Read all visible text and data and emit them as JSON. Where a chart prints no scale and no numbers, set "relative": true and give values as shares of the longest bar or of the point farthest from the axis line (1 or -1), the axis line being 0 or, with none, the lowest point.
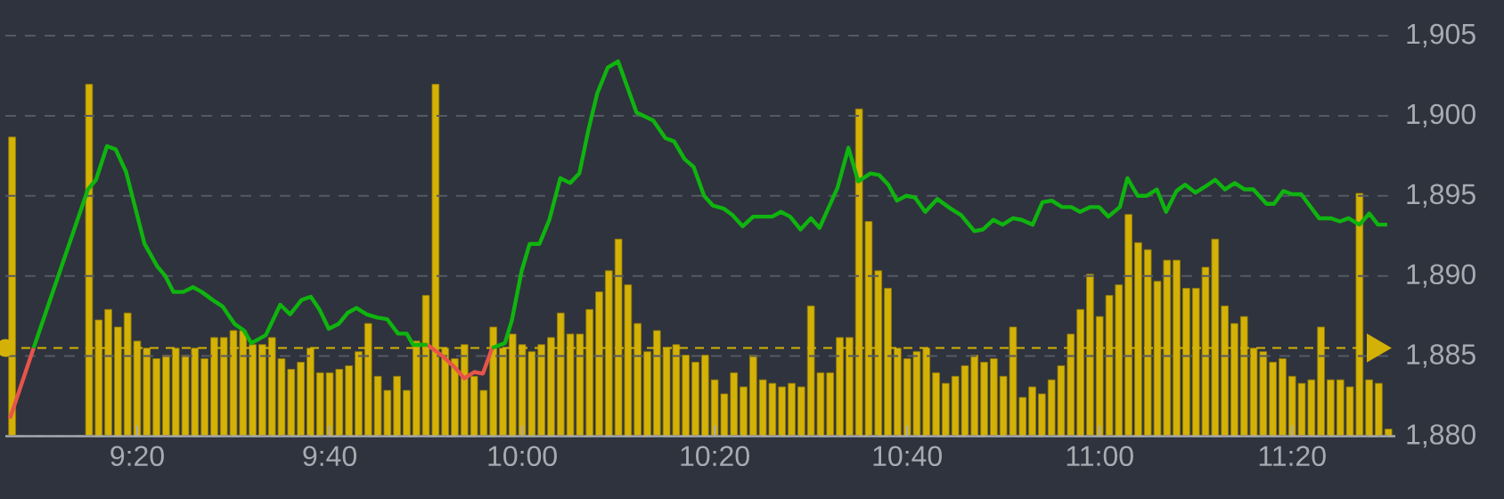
{
  "chart_data": [
    {
      "type": "bar",
      "relative": true,
      "color": "#d4b106",
      "xlim": [
        9.105,
        11.512
      ],
      "x": [
        9.1167,
        9.25,
        9.2667,
        9.2833,
        9.3,
        9.3167,
        9.3333,
        9.35,
        9.3667,
        9.3833,
        9.4,
        9.4167,
        9.4333,
        9.45,
        9.4667,
        9.4833,
        9.5,
        9.5167,
        9.5333,
        9.55,
        9.5667,
        9.5833,
        9.6,
        9.6167,
        9.6333,
        9.65,
        9.6667,
        9.6833,
        9.7,
        9.7167,
        9.7333,
        9.75,
        9.7667,
        9.7833,
        9.8,
        9.8167,
        9.8333,
        9.85,
        9.8667,
        9.8833,
        9.9,
        9.9167,
        9.9333,
        9.95,
        9.9667,
        9.9833,
        10,
        10.0167,
        10.0333,
        10.05,
        10.0667,
        10.0833,
        10.1,
        10.1167,
        10.1333,
        10.15,
        10.1667,
        10.1833,
        10.2,
        10.2167,
        10.2333,
        10.25,
        10.2667,
        10.2833,
        10.3,
        10.3167,
        10.3333,
        10.35,
        10.3667,
        10.3833,
        10.4,
        10.4167,
        10.4333,
        10.45,
        10.4667,
        10.4833,
        10.5,
        10.5167,
        10.5333,
        10.55,
        10.5667,
        10.5833,
        10.6,
        10.6167,
        10.6333,
        10.65,
        10.6667,
        10.6833,
        10.7,
        10.7167,
        10.7333,
        10.75,
        10.7667,
        10.7833,
        10.8,
        10.8167,
        10.8333,
        10.85,
        10.8667,
        10.8833,
        10.9,
        10.9167,
        10.9333,
        10.95,
        10.9667,
        10.9833,
        11,
        11.0167,
        11.0333,
        11.05,
        11.0667,
        11.0833,
        11.1,
        11.1167,
        11.1333,
        11.15,
        11.1667,
        11.1833,
        11.2,
        11.2167,
        11.2333,
        11.25,
        11.2667,
        11.2833,
        11.3,
        11.3167,
        11.3333,
        11.35,
        11.3667,
        11.3833,
        11.4,
        11.4167,
        11.4333,
        11.45,
        11.4667,
        11.4833,
        11.5
      ],
      "values": [
        0.85,
        1.0,
        0.33,
        0.36,
        0.31,
        0.35,
        0.27,
        0.25,
        0.22,
        0.23,
        0.25,
        0.23,
        0.25,
        0.22,
        0.28,
        0.28,
        0.3,
        0.3,
        0.26,
        0.26,
        0.28,
        0.22,
        0.19,
        0.21,
        0.25,
        0.18,
        0.18,
        0.19,
        0.2,
        0.24,
        0.32,
        0.17,
        0.13,
        0.17,
        0.13,
        0.27,
        0.4,
        1.0,
        0.25,
        0.22,
        0.26,
        0.17,
        0.13,
        0.31,
        0.25,
        0.29,
        0.26,
        0.24,
        0.26,
        0.28,
        0.35,
        0.29,
        0.29,
        0.36,
        0.41,
        0.47,
        0.56,
        0.43,
        0.32,
        0.24,
        0.3,
        0.25,
        0.26,
        0.23,
        0.21,
        0.23,
        0.16,
        0.12,
        0.18,
        0.14,
        0.23,
        0.16,
        0.15,
        0.14,
        0.15,
        0.14,
        0.37,
        0.18,
        0.18,
        0.28,
        0.28,
        0.93,
        0.61,
        0.47,
        0.42,
        0.25,
        0.22,
        0.24,
        0.25,
        0.18,
        0.15,
        0.17,
        0.2,
        0.23,
        0.21,
        0.22,
        0.17,
        0.31,
        0.11,
        0.14,
        0.12,
        0.16,
        0.2,
        0.29,
        0.36,
        0.46,
        0.34,
        0.4,
        0.43,
        0.63,
        0.55,
        0.53,
        0.44,
        0.5,
        0.5,
        0.42,
        0.42,
        0.48,
        0.56,
        0.37,
        0.32,
        0.34,
        0.25,
        0.24,
        0.21,
        0.22,
        0.17,
        0.15,
        0.16,
        0.31,
        0.16,
        0.16,
        0.14,
        0.69,
        0.16,
        0.15,
        0.02
      ]
    },
    {
      "type": "line",
      "xlim": [
        9.105,
        11.512
      ],
      "xticks": [
        {
          "value": 9.3333,
          "label": "9:20"
        },
        {
          "value": 9.6667,
          "label": "9:40"
        },
        {
          "value": 10,
          "label": "10:00"
        },
        {
          "value": 10.3333,
          "label": "10:20"
        },
        {
          "value": 10.6667,
          "label": "10:40"
        },
        {
          "value": 11,
          "label": "11:00"
        },
        {
          "value": 11.3333,
          "label": "11:20"
        }
      ],
      "ylim": [
        1880,
        1905
      ],
      "yticks": [
        {
          "value": 1880,
          "label": "1,880"
        },
        {
          "value": 1885,
          "label": "1,885"
        },
        {
          "value": 1890,
          "label": "1,890"
        },
        {
          "value": 1895,
          "label": "1,895"
        },
        {
          "value": 1900,
          "label": "1,900"
        },
        {
          "value": 1905,
          "label": "1,905"
        }
      ],
      "grid": "y",
      "marker": "none",
      "line_style": "solid",
      "ref_lines": [
        {
          "axis": "y",
          "value": 1885.5,
          "color": "#d4b106",
          "line_style": "dashed"
        }
      ],
      "series": [
        {
          "color": "#e8544a",
          "x": [
            9.113,
            9.154,
            9.5,
            9.836,
            9.862,
            9.883,
            9.9,
            9.917,
            9.932,
            9.948
          ],
          "values": [
            1881.1,
            1885.5,
            null,
            1885.7,
            1885.0,
            1884.3,
            1883.6,
            1884.0,
            1883.9,
            1885.5
          ]
        },
        {
          "color": "#0fb40f",
          "x": [
            9.154,
            9.248,
            9.262,
            9.281,
            9.296,
            9.314,
            9.346,
            9.368,
            9.382,
            9.396,
            9.413,
            9.43,
            9.445,
            9.464,
            9.481,
            9.502,
            9.518,
            9.531,
            9.556,
            9.581,
            9.598,
            9.618,
            9.634,
            9.649,
            9.665,
            9.682,
            9.698,
            9.713,
            9.731,
            9.749,
            9.766,
            9.785,
            9.8,
            9.811,
            9.836,
            9.89,
            9.948,
            9.97,
            9.982,
            9.999,
            10.013,
            10.03,
            10.047,
            10.066,
            10.083,
            10.099,
            10.114,
            10.13,
            10.148,
            10.166,
            10.198,
            10.227,
            10.248,
            10.263,
            10.281,
            10.297,
            10.315,
            10.33,
            10.349,
            10.364,
            10.382,
            10.4,
            10.433,
            10.448,
            10.464,
            10.482,
            10.5,
            10.515,
            10.546,
            10.565,
            10.582,
            10.603,
            10.618,
            10.634,
            10.649,
            10.665,
            10.68,
            10.698,
            10.719,
            10.742,
            10.76,
            10.783,
            10.798,
            10.816,
            10.832,
            10.85,
            10.865,
            10.884,
            10.901,
            10.917,
            10.935,
            10.951,
            10.966,
            10.984,
            10.999,
            11.015,
            11.035,
            11.048,
            11.066,
            11.081,
            11.099,
            11.115,
            11.133,
            11.148,
            11.166,
            11.184,
            11.2,
            11.217,
            11.234,
            11.251,
            11.266,
            11.289,
            11.302,
            11.318,
            11.333,
            11.349,
            11.38,
            11.4,
            11.416,
            11.431,
            11.45,
            11.467,
            11.482,
            11.498
          ],
          "values": [
            1885.5,
            1895.4,
            1896.0,
            1898.1,
            1897.9,
            1896.5,
            1892.0,
            1890.6,
            1890.0,
            1889.0,
            1889.0,
            1889.3,
            1889.0,
            1888.5,
            1888.1,
            1887.0,
            1886.6,
            1885.8,
            1886.3,
            1888.2,
            1887.6,
            1888.5,
            1888.7,
            1887.9,
            1886.7,
            1887.0,
            1887.7,
            1888.0,
            1887.6,
            1887.4,
            1887.3,
            1886.4,
            1886.4,
            1885.7,
            1885.7,
            null,
            1885.5,
            1885.8,
            1887.2,
            1890.3,
            1892.0,
            1892.0,
            1893.5,
            1896.1,
            1895.8,
            1896.4,
            1899.0,
            1901.4,
            1903.0,
            1903.4,
            1900.2,
            1899.7,
            1898.6,
            1898.4,
            1897.3,
            1896.8,
            1895.0,
            1894.4,
            1894.2,
            1893.8,
            1893.1,
            1893.7,
            1893.7,
            1894.0,
            1893.7,
            1892.9,
            1893.6,
            1893.0,
            1895.5,
            1898.0,
            1895.9,
            1896.4,
            1896.3,
            1895.7,
            1894.7,
            1895.0,
            1894.9,
            1894.0,
            1894.8,
            1894.2,
            1893.8,
            1892.8,
            1892.9,
            1893.5,
            1893.2,
            1893.6,
            1893.5,
            1893.2,
            1894.6,
            1894.7,
            1894.3,
            1894.3,
            1894.0,
            1894.3,
            1894.3,
            1893.7,
            1894.3,
            1896.1,
            1895.0,
            1895.0,
            1895.4,
            1894.0,
            1895.3,
            1895.7,
            1895.2,
            1895.6,
            1896.0,
            1895.4,
            1895.8,
            1895.4,
            1895.4,
            1894.5,
            1894.5,
            1895.3,
            1895.1,
            1895.1,
            1893.6,
            1893.6,
            1893.4,
            1893.6,
            1893.2,
            1893.9,
            1893.2,
            1893.2
          ]
        }
      ]
    }
  ]
}
